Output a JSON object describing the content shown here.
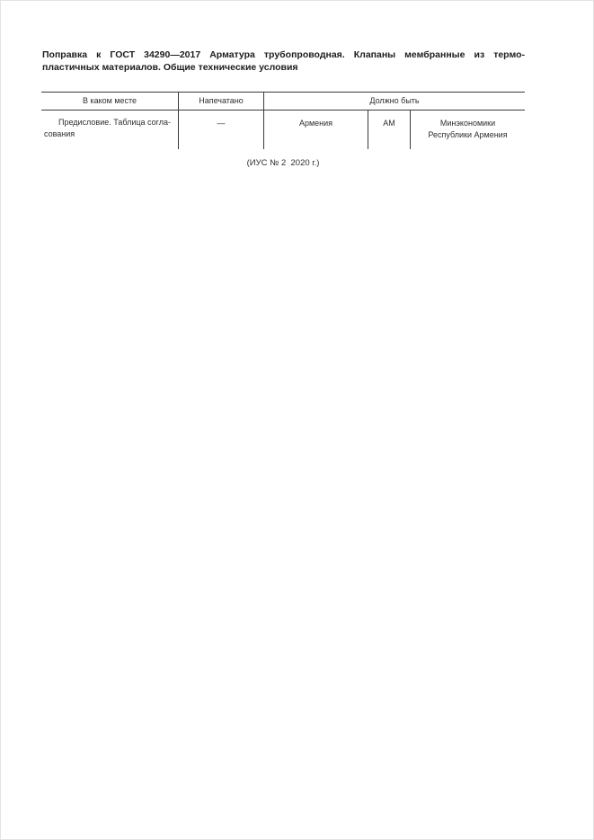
{
  "document": {
    "title": {
      "line1": "Поправка к ГОСТ 34290—2017 Арматура трубопроводная. Клапаны мембранные из термо-",
      "line2": "пластичных материалов. Общие технические условия"
    },
    "table": {
      "headers": {
        "place": "В каком месте",
        "printed": "Напечатано",
        "should_be": "Должно быть"
      },
      "row": {
        "place_line1": "Предисловие. Таблица согла-",
        "place_line2": "сования",
        "printed": "—",
        "country": "Армения",
        "code": "АМ",
        "org_line1": "Минэкономики",
        "org_line2": "Республики Армения"
      }
    },
    "footer": "(ИУС № 2  2020 г.)"
  }
}
